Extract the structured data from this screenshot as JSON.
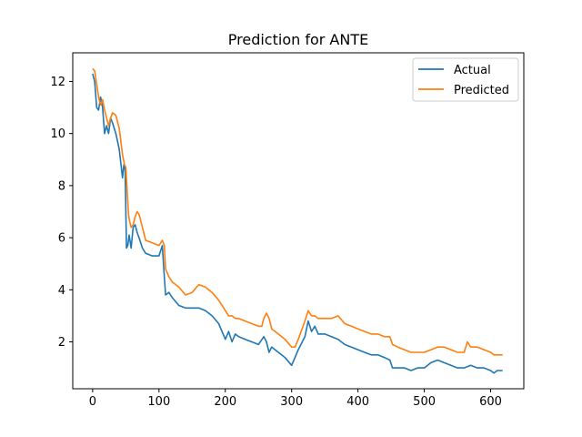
{
  "chart_data": {
    "type": "line",
    "title": "Prediction for ANTE",
    "xlabel": "",
    "ylabel": "",
    "xlim": [
      -30,
      650
    ],
    "ylim": [
      0.2,
      13.1
    ],
    "xticks": [
      0,
      100,
      200,
      300,
      400,
      500,
      600
    ],
    "yticks": [
      2,
      4,
      6,
      8,
      10,
      12
    ],
    "grid": false,
    "legend_position": "top-right",
    "series": [
      {
        "name": "Actual",
        "color": "#1f77b4",
        "x": [
          0,
          3,
          6,
          9,
          12,
          15,
          18,
          21,
          24,
          27,
          30,
          35,
          40,
          45,
          47,
          49,
          51,
          53,
          55,
          58,
          61,
          64,
          67,
          70,
          75,
          80,
          90,
          100,
          105,
          108,
          110,
          115,
          120,
          130,
          140,
          150,
          160,
          170,
          180,
          190,
          200,
          205,
          210,
          215,
          220,
          230,
          240,
          250,
          258,
          262,
          266,
          270,
          280,
          290,
          300,
          305,
          310,
          320,
          325,
          330,
          335,
          340,
          350,
          360,
          370,
          380,
          390,
          400,
          410,
          420,
          430,
          440,
          448,
          452,
          460,
          470,
          480,
          490,
          500,
          510,
          520,
          530,
          540,
          550,
          560,
          570,
          580,
          590,
          600,
          605,
          610,
          618
        ],
        "y": [
          12.3,
          12.0,
          11.0,
          10.9,
          11.4,
          11.0,
          10.0,
          10.3,
          10.0,
          10.6,
          10.4,
          10.0,
          9.4,
          8.3,
          8.8,
          8.6,
          5.6,
          5.7,
          6.1,
          5.6,
          6.4,
          6.5,
          6.2,
          6.0,
          5.6,
          5.4,
          5.3,
          5.3,
          5.7,
          4.5,
          3.8,
          3.9,
          3.7,
          3.4,
          3.3,
          3.3,
          3.3,
          3.2,
          3.0,
          2.7,
          2.1,
          2.4,
          2.0,
          2.3,
          2.2,
          2.1,
          2.0,
          1.9,
          2.2,
          2.0,
          1.6,
          1.8,
          1.6,
          1.4,
          1.1,
          1.4,
          1.7,
          2.2,
          2.8,
          2.4,
          2.6,
          2.3,
          2.3,
          2.2,
          2.1,
          1.9,
          1.8,
          1.7,
          1.6,
          1.5,
          1.5,
          1.4,
          1.3,
          1.0,
          1.0,
          1.0,
          0.9,
          1.0,
          1.0,
          1.2,
          1.3,
          1.2,
          1.1,
          1.0,
          1.0,
          1.1,
          1.0,
          1.0,
          0.9,
          0.8,
          0.9,
          0.9
        ]
      },
      {
        "name": "Predicted",
        "color": "#ff7f0e",
        "x": [
          0,
          3,
          6,
          9,
          12,
          15,
          18,
          21,
          24,
          27,
          30,
          35,
          40,
          45,
          48,
          50,
          52,
          54,
          56,
          58,
          61,
          64,
          67,
          70,
          75,
          80,
          90,
          100,
          105,
          108,
          110,
          115,
          120,
          130,
          140,
          150,
          160,
          170,
          180,
          190,
          200,
          205,
          210,
          215,
          220,
          230,
          240,
          250,
          255,
          258,
          262,
          266,
          270,
          280,
          290,
          300,
          305,
          310,
          320,
          325,
          330,
          335,
          340,
          350,
          360,
          370,
          380,
          390,
          400,
          410,
          420,
          430,
          440,
          448,
          452,
          460,
          470,
          480,
          490,
          500,
          510,
          520,
          530,
          540,
          550,
          560,
          565,
          570,
          580,
          590,
          600,
          605,
          610,
          618
        ],
        "y": [
          12.5,
          12.4,
          11.9,
          11.4,
          11.1,
          11.3,
          10.9,
          10.6,
          10.3,
          10.6,
          10.8,
          10.7,
          10.2,
          9.2,
          8.8,
          8.7,
          7.8,
          6.9,
          6.6,
          6.4,
          6.5,
          6.8,
          7.0,
          6.9,
          6.4,
          5.9,
          5.8,
          5.7,
          5.9,
          5.7,
          4.8,
          4.5,
          4.3,
          4.1,
          3.8,
          3.9,
          4.2,
          4.1,
          3.9,
          3.6,
          3.2,
          3.0,
          3.0,
          2.9,
          2.9,
          2.8,
          2.7,
          2.6,
          2.6,
          2.9,
          3.1,
          2.9,
          2.5,
          2.3,
          2.1,
          1.8,
          1.8,
          2.1,
          2.8,
          3.2,
          3.0,
          3.0,
          2.9,
          2.9,
          2.9,
          3.0,
          2.7,
          2.6,
          2.5,
          2.4,
          2.3,
          2.3,
          2.2,
          2.2,
          1.9,
          1.8,
          1.7,
          1.6,
          1.6,
          1.6,
          1.7,
          1.8,
          1.8,
          1.7,
          1.6,
          1.6,
          2.0,
          1.8,
          1.8,
          1.7,
          1.6,
          1.5,
          1.5,
          1.5
        ]
      }
    ]
  }
}
